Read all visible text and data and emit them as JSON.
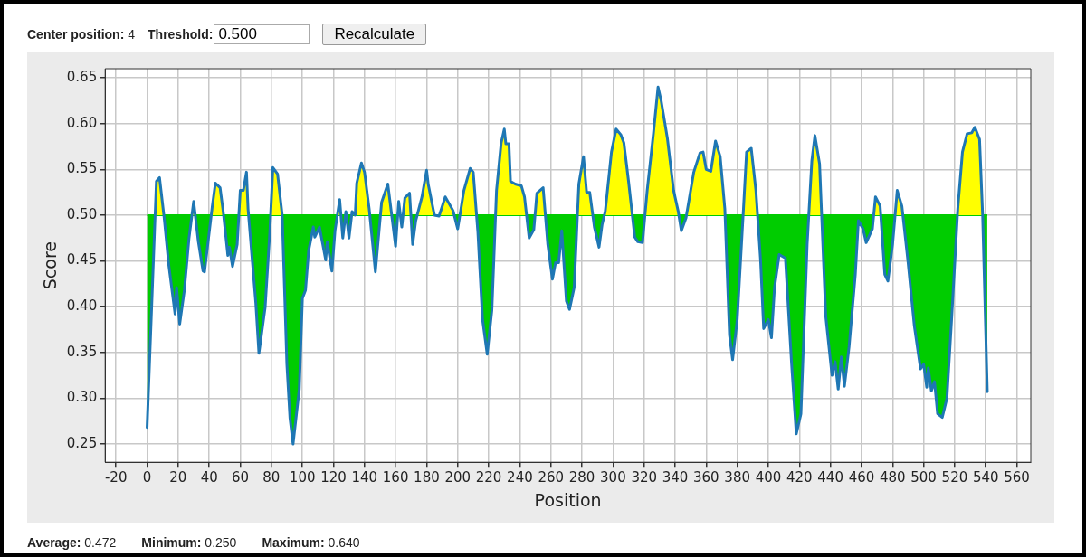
{
  "chart_data": {
    "type": "line",
    "xlabel": "Position",
    "ylabel": "Score",
    "xlim": [
      -27,
      569
    ],
    "xticks": [
      -20,
      0,
      20,
      40,
      60,
      80,
      100,
      120,
      140,
      160,
      180,
      200,
      220,
      240,
      260,
      280,
      300,
      320,
      340,
      360,
      380,
      400,
      420,
      440,
      460,
      480,
      500,
      520,
      540,
      560
    ],
    "ylim": [
      0.23,
      0.66
    ],
    "yticks": [
      0.25,
      {
        "value": 0.3,
        "label": "0.30"
      },
      0.35,
      {
        "value": 0.4,
        "label": "0.40"
      },
      0.45,
      {
        "value": 0.5,
        "label": "0.50"
      },
      0.55,
      {
        "value": 0.6,
        "label": "0.60"
      },
      0.65
    ],
    "grid": true,
    "legend": false,
    "ref_lines": [
      {
        "axis": "y",
        "value": 0.5,
        "color": "#00cc00"
      }
    ],
    "annotations": [
      "Center position: 4",
      "Threshold:",
      "0.500",
      "Recalculate",
      "Average: 0.472",
      "Minimum: 0.250",
      "Maximum: 0.640"
    ],
    "series": [
      {
        "color": "#1f77b4",
        "x": [
          0,
          6,
          8,
          11,
          14,
          18,
          19,
          21,
          24,
          27,
          30,
          33,
          36,
          37,
          42,
          44,
          47,
          49,
          52,
          53,
          55,
          58,
          60,
          62,
          64,
          65,
          70,
          72,
          76,
          79,
          81,
          84,
          87,
          90,
          92,
          94,
          98,
          100,
          102,
          104,
          107,
          108,
          111,
          115,
          116,
          119,
          121,
          124,
          126,
          128,
          130,
          132,
          134,
          135,
          138,
          140,
          143,
          147,
          151,
          155,
          160,
          162,
          164,
          166,
          169,
          171,
          173,
          177,
          180,
          181,
          185,
          188,
          192,
          197,
          200,
          204,
          208,
          210,
          213,
          216,
          219,
          222,
          225,
          228,
          230,
          231,
          233,
          234,
          237,
          241,
          243,
          246,
          249,
          251,
          255,
          258,
          261,
          263,
          265,
          267,
          270,
          272,
          275,
          278,
          281,
          283,
          285,
          288,
          291,
          293,
          295,
          299,
          302,
          305,
          307,
          310,
          314,
          316,
          319,
          322,
          326,
          329,
          331,
          335,
          339,
          342,
          344,
          347,
          352,
          356,
          358,
          360,
          363,
          366,
          369,
          372,
          375,
          377,
          380,
          384,
          386,
          389,
          392,
          395,
          397,
          400,
          402,
          404,
          407,
          411,
          415,
          418,
          421,
          425,
          428,
          430,
          433,
          437,
          441,
          443,
          445,
          447,
          449,
          452,
          456,
          458,
          461,
          463,
          467,
          469,
          472,
          475,
          477,
          480,
          483,
          486,
          490,
          494,
          498,
          500,
          502,
          503,
          505,
          507,
          509,
          512,
          515,
          518,
          522,
          525,
          528,
          531,
          533,
          536,
          538,
          541
        ],
        "values": [
          0.268,
          0.537,
          0.541,
          0.497,
          0.445,
          0.392,
          0.421,
          0.381,
          0.418,
          0.475,
          0.515,
          0.471,
          0.439,
          0.438,
          0.51,
          0.535,
          0.53,
          0.504,
          0.456,
          0.465,
          0.444,
          0.468,
          0.527,
          0.527,
          0.547,
          0.507,
          0.404,
          0.349,
          0.399,
          0.481,
          0.552,
          0.545,
          0.5,
          0.337,
          0.278,
          0.25,
          0.31,
          0.409,
          0.418,
          0.461,
          0.487,
          0.476,
          0.487,
          0.451,
          0.471,
          0.439,
          0.483,
          0.517,
          0.475,
          0.504,
          0.475,
          0.504,
          0.5,
          0.535,
          0.557,
          0.547,
          0.507,
          0.438,
          0.514,
          0.534,
          0.466,
          0.515,
          0.487,
          0.519,
          0.524,
          0.468,
          0.494,
          0.52,
          0.549,
          0.534,
          0.5,
          0.499,
          0.52,
          0.505,
          0.485,
          0.527,
          0.551,
          0.547,
          0.481,
          0.386,
          0.348,
          0.396,
          0.527,
          0.579,
          0.594,
          0.578,
          0.578,
          0.537,
          0.534,
          0.532,
          0.52,
          0.475,
          0.484,
          0.524,
          0.53,
          0.468,
          0.43,
          0.448,
          0.448,
          0.483,
          0.406,
          0.397,
          0.421,
          0.534,
          0.564,
          0.525,
          0.525,
          0.487,
          0.465,
          0.49,
          0.504,
          0.569,
          0.594,
          0.588,
          0.579,
          0.537,
          0.476,
          0.471,
          0.47,
          0.527,
          0.589,
          0.64,
          0.625,
          0.584,
          0.527,
          0.504,
          0.483,
          0.497,
          0.547,
          0.568,
          0.569,
          0.55,
          0.548,
          0.581,
          0.564,
          0.507,
          0.369,
          0.342,
          0.386,
          0.507,
          0.569,
          0.573,
          0.527,
          0.451,
          0.376,
          0.386,
          0.366,
          0.421,
          0.457,
          0.453,
          0.337,
          0.261,
          0.283,
          0.468,
          0.559,
          0.587,
          0.556,
          0.389,
          0.325,
          0.34,
          0.31,
          0.345,
          0.313,
          0.356,
          0.435,
          0.494,
          0.485,
          0.47,
          0.485,
          0.52,
          0.51,
          0.435,
          0.428,
          0.468,
          0.527,
          0.51,
          0.448,
          0.379,
          0.332,
          0.337,
          0.312,
          0.333,
          0.308,
          0.318,
          0.283,
          0.279,
          0.3,
          0.386,
          0.507,
          0.569,
          0.589,
          0.59,
          0.596,
          0.583,
          0.5,
          0.307
        ]
      }
    ]
  }
}
